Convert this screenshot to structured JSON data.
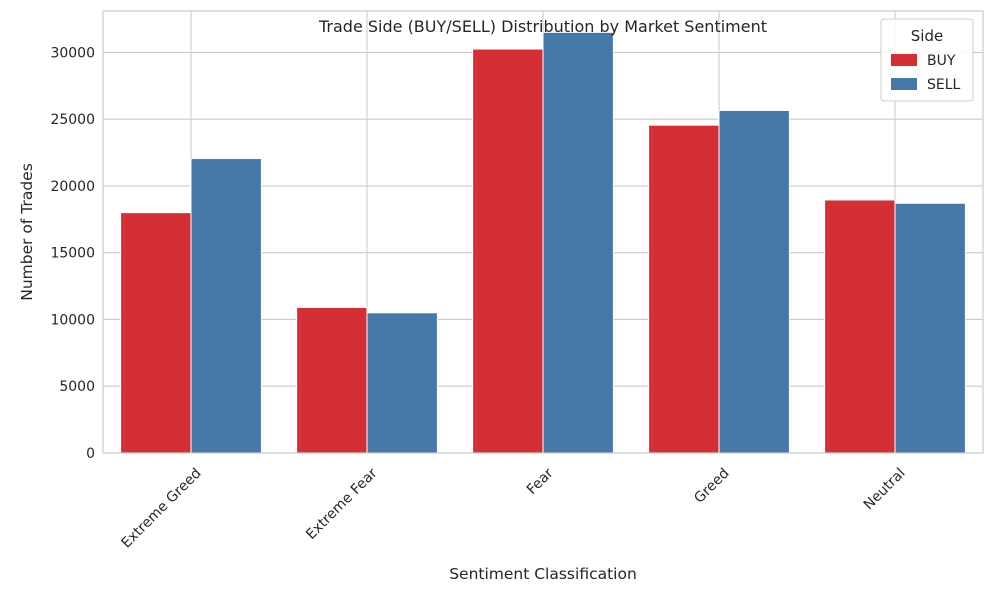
{
  "chart_data": {
    "type": "bar",
    "title": "Trade Side (BUY/SELL) Distribution by Market Sentiment",
    "xlabel": "Sentiment Classification",
    "ylabel": "Number of Trades",
    "categories": [
      "Extreme Greed",
      "Extreme Fear",
      "Fear",
      "Greed",
      "Neutral"
    ],
    "series": [
      {
        "name": "BUY",
        "color": "#d32f34",
        "values": [
          18000,
          10900,
          30250,
          24550,
          18950
        ]
      },
      {
        "name": "SELL",
        "color": "#4679a8",
        "values": [
          22050,
          10500,
          31500,
          25650,
          18700
        ]
      }
    ],
    "ylim": [
      0,
      33100
    ],
    "yticks": [
      0,
      5000,
      10000,
      15000,
      20000,
      25000,
      30000
    ],
    "grid": true,
    "legend": {
      "title": "Side",
      "placement": "top-right"
    }
  }
}
